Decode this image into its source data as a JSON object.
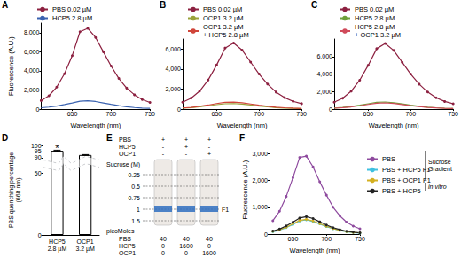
{
  "chart_data": [
    {
      "panel": "A",
      "type": "line",
      "ylabel": "Fluorescence (A.U.)",
      "xlabel": "Wavelength (nm)",
      "x": [
        610,
        620,
        630,
        640,
        650,
        660,
        670,
        680,
        690,
        700,
        710,
        720,
        730,
        740,
        750
      ],
      "xlim": [
        610,
        750
      ],
      "xticks": [
        650,
        700,
        750
      ],
      "ylim": [
        0,
        9000
      ],
      "yticks": [
        0,
        2000,
        4000,
        6000,
        8000
      ],
      "grid": false,
      "legend": "top",
      "series": [
        {
          "name": "PBS 0.02 µM",
          "color": "#8c2040",
          "marker": "circle",
          "values": [
            900,
            1400,
            2300,
            3700,
            5600,
            8100,
            8450,
            7500,
            6000,
            4500,
            3200,
            2200,
            1500,
            1000,
            700
          ]
        },
        {
          "name": "HCP5 2.8 µM",
          "color": "#3a62b0",
          "marker": "none",
          "values": [
            150,
            220,
            330,
            480,
            650,
            830,
            880,
            800,
            650,
            500,
            360,
            250,
            170,
            120,
            90
          ]
        }
      ]
    },
    {
      "panel": "B",
      "type": "line",
      "xlabel": "Wavelength (nm)",
      "x": [
        610,
        620,
        630,
        640,
        650,
        660,
        670,
        680,
        690,
        700,
        710,
        720,
        730,
        740,
        750
      ],
      "xlim": [
        610,
        750
      ],
      "xticks": [
        650,
        700,
        750
      ],
      "ylim": [
        0,
        7000
      ],
      "yticks": [
        0,
        2000,
        4000,
        6000
      ],
      "grid": false,
      "legend": "top",
      "series": [
        {
          "name": "PBS 0.02 µM",
          "color": "#8c2040",
          "marker": "circle",
          "values": [
            700,
            1100,
            1800,
            2900,
            4400,
            6100,
            6600,
            5900,
            4700,
            3500,
            2500,
            1700,
            1150,
            780,
            550
          ]
        },
        {
          "name": "OCP1 3.2 µM",
          "color": "#9aa33a",
          "marker": "none",
          "values": [
            100,
            150,
            230,
            340,
            450,
            540,
            560,
            500,
            410,
            310,
            230,
            160,
            110,
            80,
            60
          ]
        },
        {
          "name": "OCP1 3.2 µM\n+ HCP5 2.8 µM",
          "color": "#d0453a",
          "marker": "none",
          "values": [
            120,
            180,
            280,
            410,
            560,
            680,
            710,
            640,
            520,
            400,
            290,
            200,
            140,
            100,
            70
          ]
        }
      ]
    },
    {
      "panel": "C",
      "type": "line",
      "xlabel": "Wavelength (nm)",
      "x": [
        610,
        620,
        630,
        640,
        650,
        660,
        670,
        680,
        690,
        700,
        710,
        720,
        730,
        740,
        750
      ],
      "xlim": [
        610,
        750
      ],
      "xticks": [
        650,
        700,
        750
      ],
      "ylim": [
        0,
        8000
      ],
      "yticks": [
        0,
        2000,
        4000,
        6000
      ],
      "grid": false,
      "legend": "top",
      "series": [
        {
          "name": "PBS 0.02 µM",
          "color": "#8c2040",
          "marker": "circle",
          "values": [
            800,
            1250,
            2050,
            3300,
            5000,
            6900,
            7500,
            6700,
            5350,
            4000,
            2850,
            1950,
            1300,
            880,
            620
          ]
        },
        {
          "name": "HCP5 2.8 µM",
          "color": "#6fa03a",
          "marker": "none",
          "values": [
            130,
            200,
            300,
            450,
            620,
            780,
            820,
            740,
            600,
            460,
            330,
            230,
            160,
            110,
            80
          ]
        },
        {
          "name": "HCP5 2.8 µM\n+ OCP1 3.2 µM",
          "color": "#d04a5a",
          "marker": "none",
          "values": [
            110,
            170,
            260,
            390,
            540,
            680,
            720,
            650,
            530,
            400,
            290,
            200,
            140,
            100,
            70
          ]
        }
      ]
    },
    {
      "panel": "D",
      "type": "bar",
      "ylabel": "PBS quenching percentage\n(668 nm)",
      "categories": [
        "HCP5\n2.8 µM",
        "OCP1\n3.2 µM"
      ],
      "values": [
        95.6,
        92.2
      ],
      "errors": [
        0.5,
        0.3
      ],
      "color": "#ffffff",
      "ylim": [
        0,
        100
      ],
      "yticks": [
        0,
        50,
        90,
        95,
        100
      ],
      "y_break": [
        55,
        88
      ],
      "grid": false,
      "annotations": [
        {
          "text": "*",
          "x": "HCP5\n2.8 µM"
        }
      ]
    },
    {
      "panel": "F",
      "type": "line",
      "ylabel": "Fluorescence (A.U.)",
      "xlabel": "Wavelength (nm)",
      "x": [
        620,
        630,
        640,
        650,
        660,
        670,
        680,
        690,
        700,
        710,
        720,
        730,
        740,
        750
      ],
      "xlim": [
        615,
        750
      ],
      "xticks": [
        650,
        700,
        750
      ],
      "ylim": [
        0,
        3300
      ],
      "yticks": [
        0,
        1000,
        2000,
        3000
      ],
      "grid": false,
      "legend": "right",
      "series": [
        {
          "name": "PBS",
          "color": "#8e4a9e",
          "marker": "circle",
          "values": [
            500,
            850,
            1400,
            2100,
            2850,
            2900,
            2500,
            1950,
            1450,
            1000,
            680,
            450,
            300,
            200
          ]
        },
        {
          "name": "PBS + HCP5 F1",
          "color": "#3fc0e0",
          "marker": "circle",
          "values": [
            90,
            150,
            240,
            360,
            490,
            530,
            470,
            380,
            280,
            200,
            140,
            90,
            60,
            40
          ]
        },
        {
          "name": "PBS + OCP1 F1",
          "color": "#d4b020",
          "marker": "circle",
          "values": [
            100,
            160,
            260,
            380,
            510,
            550,
            490,
            390,
            290,
            210,
            140,
            95,
            65,
            45
          ]
        },
        {
          "name": "PBS + HCP5",
          "color": "#222222",
          "marker": "circle",
          "values": [
            120,
            190,
            310,
            450,
            600,
            650,
            580,
            460,
            340,
            240,
            170,
            110,
            75,
            50
          ]
        }
      ],
      "legend_groups": [
        {
          "label": "Sucrose\nGradient",
          "series": [
            "PBS",
            "PBS + HCP5 F1",
            "PBS + OCP1 F1"
          ]
        },
        {
          "label": "in vitro",
          "series": [
            "PBS + HCP5"
          ]
        }
      ]
    }
  ],
  "gel": {
    "panel": "E",
    "rows": [
      {
        "label": "PBS",
        "lanes": [
          "+",
          "+",
          "+"
        ]
      },
      {
        "label": "HCP5",
        "lanes": [
          "-",
          "+",
          "-"
        ]
      },
      {
        "label": "OCP1",
        "lanes": [
          "-",
          "-",
          "+"
        ]
      }
    ],
    "sucrose_title": "Sucrose (M)",
    "sucrose": [
      "0.25",
      "0.5",
      "0.75",
      "1",
      "1.5"
    ],
    "fraction": {
      "label": "F1",
      "sucrose": "1"
    },
    "amount_title": "picoMoles",
    "amounts": [
      {
        "label": "PBS",
        "values": [
          40,
          40,
          40
        ]
      },
      {
        "label": "HCP5",
        "values": [
          0,
          1600,
          0
        ]
      },
      {
        "label": "OCP1",
        "values": [
          0,
          0,
          1600
        ]
      }
    ]
  }
}
